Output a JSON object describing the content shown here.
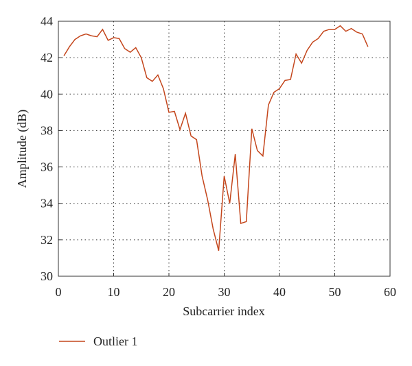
{
  "chart_data": {
    "type": "line",
    "xlabel": "Subcarrier index",
    "ylabel": "Amplitude (dB)",
    "x": [
      1,
      2,
      3,
      4,
      5,
      6,
      7,
      8,
      9,
      10,
      11,
      12,
      13,
      14,
      15,
      16,
      17,
      18,
      19,
      20,
      21,
      22,
      23,
      24,
      25,
      26,
      27,
      28,
      29,
      30,
      31,
      32,
      33,
      34,
      35,
      36,
      37,
      38,
      39,
      40,
      41,
      42,
      43,
      44,
      45,
      46,
      47,
      48,
      49,
      50,
      51,
      52,
      53,
      54,
      55,
      56
    ],
    "series": [
      {
        "name": "Outlier 1",
        "color": "#c4461c",
        "values": [
          42.1,
          42.6,
          43.0,
          43.2,
          43.3,
          43.2,
          43.15,
          43.55,
          42.95,
          43.1,
          43.05,
          42.5,
          42.3,
          42.55,
          42.0,
          40.9,
          40.7,
          41.05,
          40.3,
          39.0,
          39.05,
          38.05,
          38.95,
          37.7,
          37.5,
          35.5,
          34.2,
          32.6,
          31.4,
          35.5,
          34.0,
          36.7,
          32.9,
          33.0,
          38.1,
          36.9,
          36.6,
          39.4,
          40.1,
          40.3,
          40.75,
          40.8,
          42.2,
          41.7,
          42.4,
          42.85,
          43.05,
          43.45,
          43.55,
          43.55,
          43.75,
          43.45,
          43.6,
          43.4,
          43.3,
          42.6
        ]
      }
    ],
    "xlim": [
      0,
      60
    ],
    "xticks": [
      0,
      10,
      20,
      30,
      40,
      50,
      60
    ],
    "ylim": [
      30,
      44
    ],
    "yticks": [
      30,
      32,
      34,
      36,
      38,
      40,
      42,
      44
    ],
    "grid": true,
    "legend": "bottom-left"
  }
}
